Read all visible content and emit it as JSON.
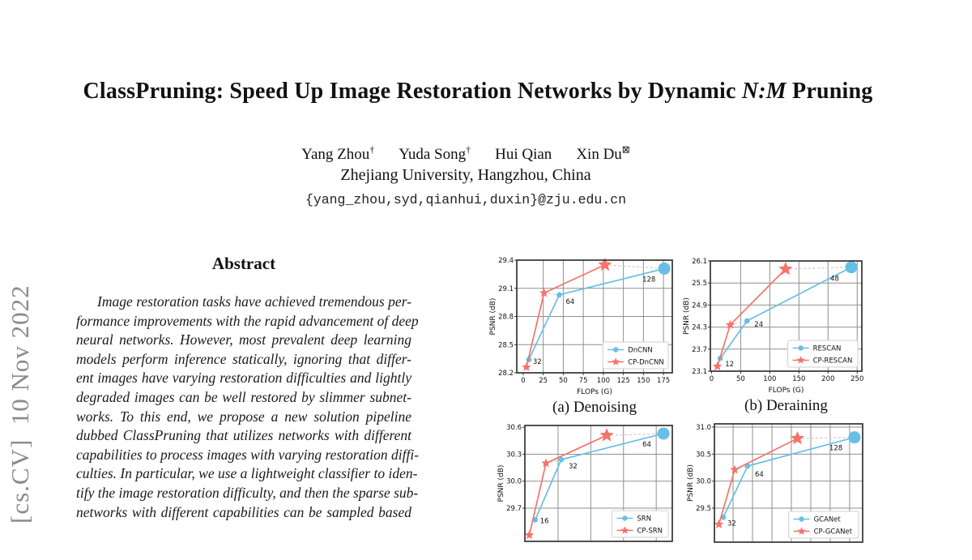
{
  "arxiv_stamp": {
    "text": "[cs.CV]  10 Nov 2022",
    "color": "#8b8b8b"
  },
  "header": {
    "title_prefix": "ClassPruning: Speed Up Image Restoration Networks by Dynamic ",
    "title_emphasis": "N:M",
    "title_suffix": " Pruning",
    "authors": [
      {
        "name": "Yang Zhou",
        "sup": "†"
      },
      {
        "name": "Yuda Song",
        "sup": "†"
      },
      {
        "name": "Hui Qian",
        "sup": ""
      },
      {
        "name": "Xin Du",
        "sup": "⊠"
      }
    ],
    "affiliation": "Zhejiang University, Hangzhou, China",
    "email": "{yang_zhou,syd,qianhui,duxin}@zju.edu.cn"
  },
  "abstract": {
    "heading": "Abstract",
    "lines": [
      "Image restoration tasks have achieved tremendous per-",
      "formance improvements with the rapid advancement of deep",
      "neural networks.  However, most prevalent deep learning",
      "models perform inference statically, ignoring that differ-",
      "ent images have varying restoration difficulties and lightly",
      "degraded images can be well restored by slimmer subnet-",
      "works.  To this end, we propose a new solution pipeline",
      "dubbed ClassPruning that utilizes networks with different",
      "capabilities to process images with varying restoration diffi-",
      "culties. In particular, we use a lightweight classifier to iden-",
      "tify the image restoration difficulty, and then the sparse sub-",
      "networks with different capabilities can be sampled based"
    ]
  },
  "colors": {
    "series_blue": "#68bfe6",
    "series_red": "#f4746a",
    "grid": "#8f8f8f",
    "axis_border": "#333333",
    "dashed_connector": "#cccccc",
    "legend_border": "#cfcfcf"
  },
  "chart_data": [
    {
      "type": "line",
      "caption": "(a) Denoising",
      "xlabel": "FLOPs (G)",
      "ylabel": "PSNR (dB)",
      "xlim": [
        -8,
        186
      ],
      "ylim": [
        28.2,
        29.4
      ],
      "xticks": [
        0,
        25,
        50,
        75,
        100,
        125,
        150,
        175
      ],
      "yticks": [
        28.2,
        28.5,
        28.8,
        29.1,
        29.4
      ],
      "grid": true,
      "legend_loc": "lower right",
      "connect_dashed": [
        1,
        2
      ],
      "series": [
        {
          "name": "DnCNN",
          "color": "#68bfe6",
          "marker": "circle",
          "x": [
            7,
            45,
            176
          ],
          "y": [
            28.34,
            29.03,
            29.31
          ],
          "point_labels": [
            "32",
            "64",
            "128"
          ],
          "label_offsets": [
            [
              5,
              5
            ],
            [
              8,
              11
            ],
            [
              -27,
              16
            ]
          ]
        },
        {
          "name": "CP-DnCNN",
          "color": "#f4746a",
          "marker": "star",
          "x": [
            4,
            26,
            102
          ],
          "y": [
            28.26,
            29.05,
            29.35
          ],
          "point_labels": [
            "",
            "",
            ""
          ],
          "label_offsets": [
            [
              0,
              0
            ],
            [
              0,
              0
            ],
            [
              0,
              0
            ]
          ]
        }
      ]
    },
    {
      "type": "line",
      "caption": "(b) Deraining",
      "xlabel": "FLOPs (G)",
      "ylabel": "PSNR (dB)",
      "xlim": [
        -2,
        258
      ],
      "ylim": [
        23.1,
        26.1
      ],
      "xticks": [
        0,
        50,
        100,
        150,
        200,
        250
      ],
      "yticks": [
        23.1,
        23.7,
        24.3,
        24.9,
        25.5,
        26.1
      ],
      "grid": true,
      "legend_loc": "lower right",
      "connect_dashed": [
        1,
        2
      ],
      "series": [
        {
          "name": "RESCAN",
          "color": "#68bfe6",
          "marker": "circle",
          "x": [
            15,
            61,
            240
          ],
          "y": [
            23.45,
            24.47,
            25.93
          ],
          "point_labels": [
            "12",
            "24",
            "48"
          ],
          "label_offsets": [
            [
              6,
              10
            ],
            [
              9,
              7
            ],
            [
              -26,
              17
            ]
          ]
        },
        {
          "name": "CP-RESCAN",
          "color": "#f4746a",
          "marker": "star",
          "x": [
            10,
            32,
            127
          ],
          "y": [
            23.23,
            24.36,
            25.88
          ],
          "point_labels": [
            "",
            "",
            ""
          ],
          "label_offsets": [
            [
              0,
              0
            ],
            [
              0,
              0
            ],
            [
              0,
              0
            ]
          ]
        }
      ]
    },
    {
      "type": "line",
      "caption": "",
      "xlabel": "",
      "ylabel": "PSNR (dB)",
      "x_axis_cropped": true,
      "xlim": [
        0,
        1
      ],
      "ylim": [
        29.33,
        30.62
      ],
      "xgrid": [
        0.225,
        0.447,
        0.669,
        0.891
      ],
      "xticks": [],
      "yticks": [
        29.7,
        30.0,
        30.3,
        30.6
      ],
      "grid": true,
      "legend_loc": "lower right",
      "connect_dashed": [
        1,
        2
      ],
      "series": [
        {
          "name": "SRN",
          "color": "#68bfe6",
          "marker": "circle",
          "x": [
            0.07,
            0.247,
            0.94
          ],
          "y": [
            29.57,
            30.24,
            30.53
          ],
          "point_labels": [
            "16",
            "32",
            "64"
          ],
          "label_offsets": [
            [
              6,
              4
            ],
            [
              9,
              11
            ],
            [
              -26,
              16
            ]
          ]
        },
        {
          "name": "CP-SRN",
          "color": "#f4746a",
          "marker": "star",
          "x": [
            0.03,
            0.143,
            0.555
          ],
          "y": [
            29.4,
            30.2,
            30.51
          ],
          "point_labels": [
            "",
            "",
            ""
          ],
          "label_offsets": [
            [
              0,
              0
            ],
            [
              0,
              0
            ],
            [
              0,
              0
            ]
          ]
        }
      ]
    },
    {
      "type": "line",
      "caption": "",
      "xlabel": "",
      "ylabel": "PSNR (dB)",
      "x_axis_cropped": true,
      "xlim": [
        0,
        1
      ],
      "ylim": [
        28.87,
        31.06
      ],
      "xgrid": [
        0.126,
        0.257,
        0.388,
        0.519,
        0.65,
        0.781,
        0.912
      ],
      "xticks": [],
      "yticks": [
        29.5,
        30.0,
        30.5,
        31.0
      ],
      "grid": true,
      "legend_loc": "lower right",
      "connect_dashed": [
        1,
        2
      ],
      "series": [
        {
          "name": "GCANet",
          "color": "#68bfe6",
          "marker": "circle",
          "x": [
            0.06,
            0.224,
            0.945
          ],
          "y": [
            29.33,
            30.28,
            30.81
          ],
          "point_labels": [
            "32",
            "64",
            "128"
          ],
          "label_offsets": [
            [
              5,
              10
            ],
            [
              9,
              13
            ],
            [
              -31,
              16
            ]
          ]
        },
        {
          "name": "CP-GCANet",
          "color": "#f4746a",
          "marker": "star",
          "x": [
            0.03,
            0.137,
            0.56
          ],
          "y": [
            29.2,
            30.21,
            30.79
          ],
          "point_labels": [
            "",
            "",
            ""
          ],
          "label_offsets": [
            [
              0,
              0
            ],
            [
              0,
              0
            ],
            [
              0,
              0
            ]
          ]
        }
      ]
    }
  ]
}
